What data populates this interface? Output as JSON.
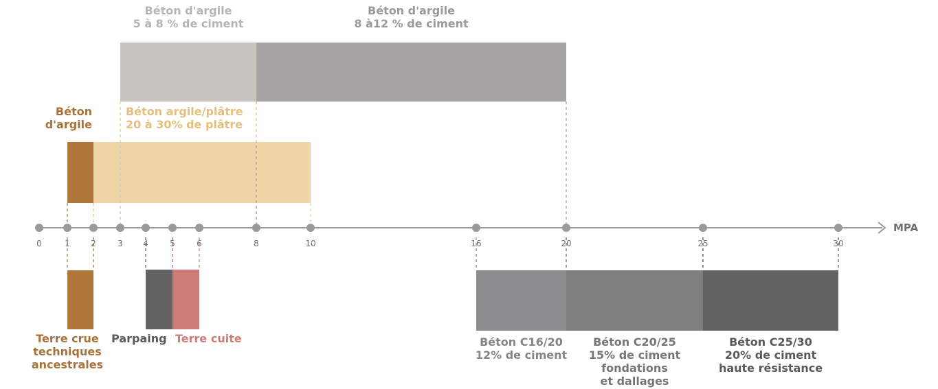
{
  "chart_data": {
    "type": "range-bar",
    "unit": "MPA",
    "axis_ticks": [
      0,
      1,
      2,
      3,
      4,
      5,
      6,
      8,
      10,
      16,
      20,
      25,
      30
    ],
    "ranges": [
      {
        "id": "argile-5-8",
        "lines": [
          "Béton d'argile",
          "5 à 8 % de ciment"
        ],
        "from": 3,
        "to": 8,
        "color": "#c7c4bf",
        "text_color": "#b8b5b0"
      },
      {
        "id": "argile-8-12",
        "lines": [
          "Béton d'argile",
          "8 à12 % de ciment"
        ],
        "from": 8,
        "to": 20,
        "color": "#a5a4a3",
        "text_color": "#9b9a99"
      },
      {
        "id": "beton-argile",
        "lines": [
          "Béton",
          "d'argile"
        ],
        "from": 1,
        "to": 2,
        "color": "#b0773a",
        "text_color": "#a8733a"
      },
      {
        "id": "argile-platre",
        "lines": [
          "Béton argile/plâtre",
          "20 à 30% de plâtre"
        ],
        "from": 2,
        "to": 10,
        "color": "#efd4a6",
        "text_color": "#e4bf7e"
      },
      {
        "id": "terre-crue",
        "lines": [
          "Terre crue",
          "techniques",
          "ancestrales"
        ],
        "from": 1,
        "to": 2,
        "color": "#b0773a",
        "text_color": "#a8733a"
      },
      {
        "id": "parpaing",
        "lines": [
          "Parpaing"
        ],
        "from": 4,
        "to": 5,
        "color": "#636363",
        "text_color": "#5a5a5a"
      },
      {
        "id": "terre-cuite",
        "lines": [
          "Terre cuite"
        ],
        "from": 5,
        "to": 6,
        "color": "#cd7d76",
        "text_color": "#cd7d76"
      },
      {
        "id": "c16-20",
        "lines": [
          "Béton C16/20",
          "12% de ciment"
        ],
        "from": 16,
        "to": 20,
        "color": "#8c8c8e",
        "text_color": "#858587"
      },
      {
        "id": "c20-25",
        "lines": [
          "Béton C20/25",
          "15% de ciment",
          "fondations",
          "et dallages"
        ],
        "from": 20,
        "to": 25,
        "color": "#7e7e7e",
        "text_color": "#767676"
      },
      {
        "id": "c25-30",
        "lines": [
          "Béton C25/30",
          "20% de ciment",
          "haute résistance"
        ],
        "from": 25,
        "to": 30,
        "color": "#636363",
        "text_color": "#595959"
      }
    ]
  }
}
